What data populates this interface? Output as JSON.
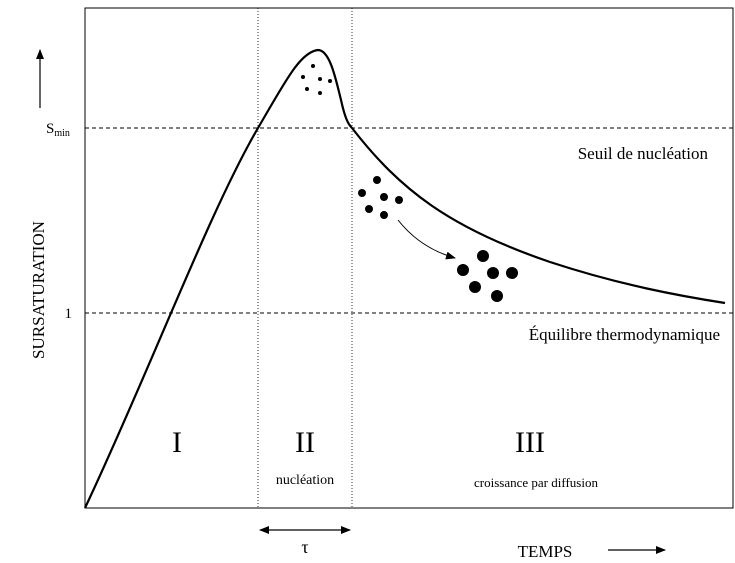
{
  "axis": {
    "y_label": "SURSATURATION",
    "x_label": "TEMPS"
  },
  "levels": {
    "smin_main": "S",
    "smin_sub": "min",
    "one": "1",
    "threshold": "Seuil de nucléation",
    "equilibrium": "Équilibre thermodynamique"
  },
  "phases": [
    {
      "numeral": "I"
    },
    {
      "numeral": "II",
      "caption": "nucléation"
    },
    {
      "numeral": "III",
      "caption": "croissance par diffusion"
    }
  ],
  "tau": "τ"
}
